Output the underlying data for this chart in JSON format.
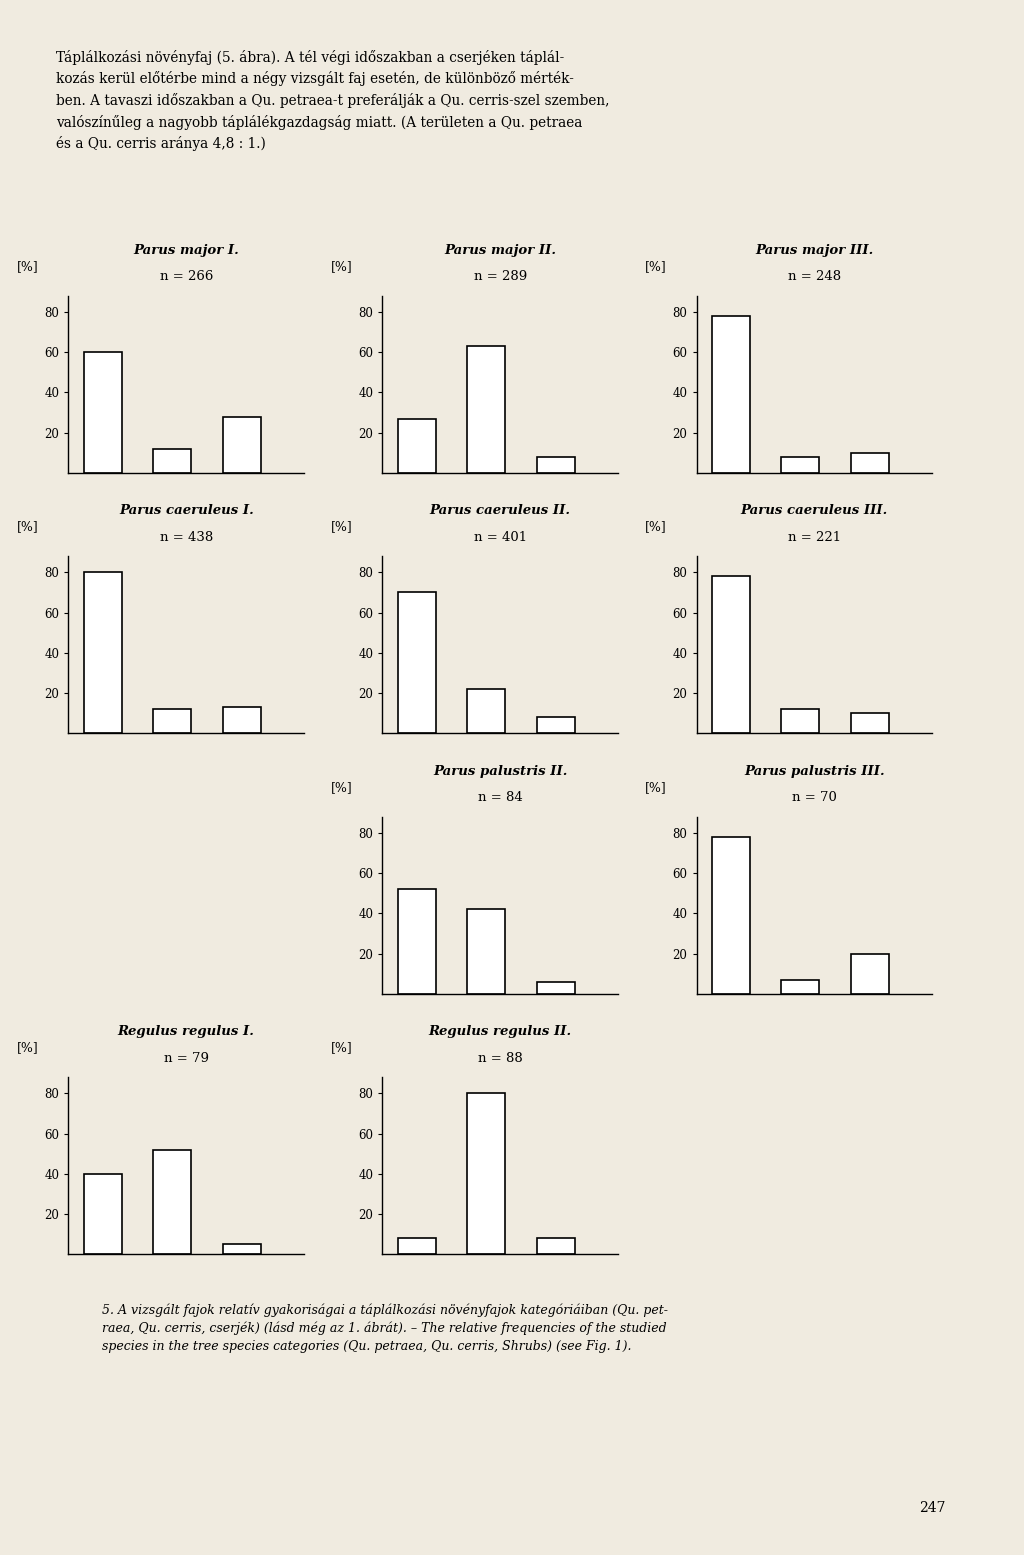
{
  "background_color": "#f0ebe0",
  "subplots": [
    {
      "title": "Parus major I.",
      "n_label": "n = 266",
      "bars": [
        60,
        12,
        28
      ],
      "row": 0,
      "col": 0
    },
    {
      "title": "Parus major II.",
      "n_label": "n = 289",
      "bars": [
        27,
        63,
        8
      ],
      "row": 0,
      "col": 1
    },
    {
      "title": "Parus major III.",
      "n_label": "n = 248",
      "bars": [
        78,
        8,
        10
      ],
      "row": 0,
      "col": 2
    },
    {
      "title": "Parus caeruleus I.",
      "n_label": "n = 438",
      "bars": [
        80,
        12,
        13
      ],
      "row": 1,
      "col": 0
    },
    {
      "title": "Parus caeruleus II.",
      "n_label": "n = 401",
      "bars": [
        70,
        22,
        8
      ],
      "row": 1,
      "col": 1
    },
    {
      "title": "Parus caeruleus III.",
      "n_label": "n = 221",
      "bars": [
        78,
        12,
        10
      ],
      "row": 1,
      "col": 2
    },
    {
      "title": "Parus palustris II.",
      "n_label": "n = 84",
      "bars": [
        52,
        42,
        6
      ],
      "row": 2,
      "col": 1
    },
    {
      "title": "Parus palustris III.",
      "n_label": "n = 70",
      "bars": [
        78,
        7,
        20
      ],
      "row": 2,
      "col": 2
    },
    {
      "title": "Regulus regulus I.",
      "n_label": "n = 79",
      "bars": [
        40,
        52,
        5
      ],
      "row": 3,
      "col": 0
    },
    {
      "title": "Regulus regulus II.",
      "n_label": "n = 88",
      "bars": [
        8,
        80,
        8
      ],
      "row": 3,
      "col": 1
    }
  ],
  "intro_text_line1": "Táplálkozási növényfaj (5. ábra). A tél végi időszakban a cserjéken táplál-",
  "intro_text_line2": "kozás kerül előtérbe mind a négy vizsgált faj esetén, de különböző mérték-",
  "intro_text_line3": "ben. A tavaszi időszakban a Qu. petraea-t preferálják a Qu. cerris-szel szemben,",
  "intro_text_line4": "valószínűleg a nagyobb táplálékgazdagság miatt. (A területen a Qu. petraea",
  "intro_text_line5": "és a Qu. cerris aránya 4,8 : 1.)",
  "footer_line1": "5. A vizsgált fajok relatív gyakoriságai a táplálkozási növényfajok kategóriáiban (Qu. pet-",
  "footer_line2": "raea, Qu. cerris, cserjék) (lásd még az 1. ábrát). – The relative frequencies of the studied",
  "footer_line3": "species in the tree species categories (Qu. petraea, Qu. cerris, Shrubs) (see Fig. 1).",
  "page_number": "247",
  "ylim": [
    0,
    88
  ],
  "yticks": [
    20,
    40,
    60,
    80
  ],
  "ylabel": "[%]"
}
